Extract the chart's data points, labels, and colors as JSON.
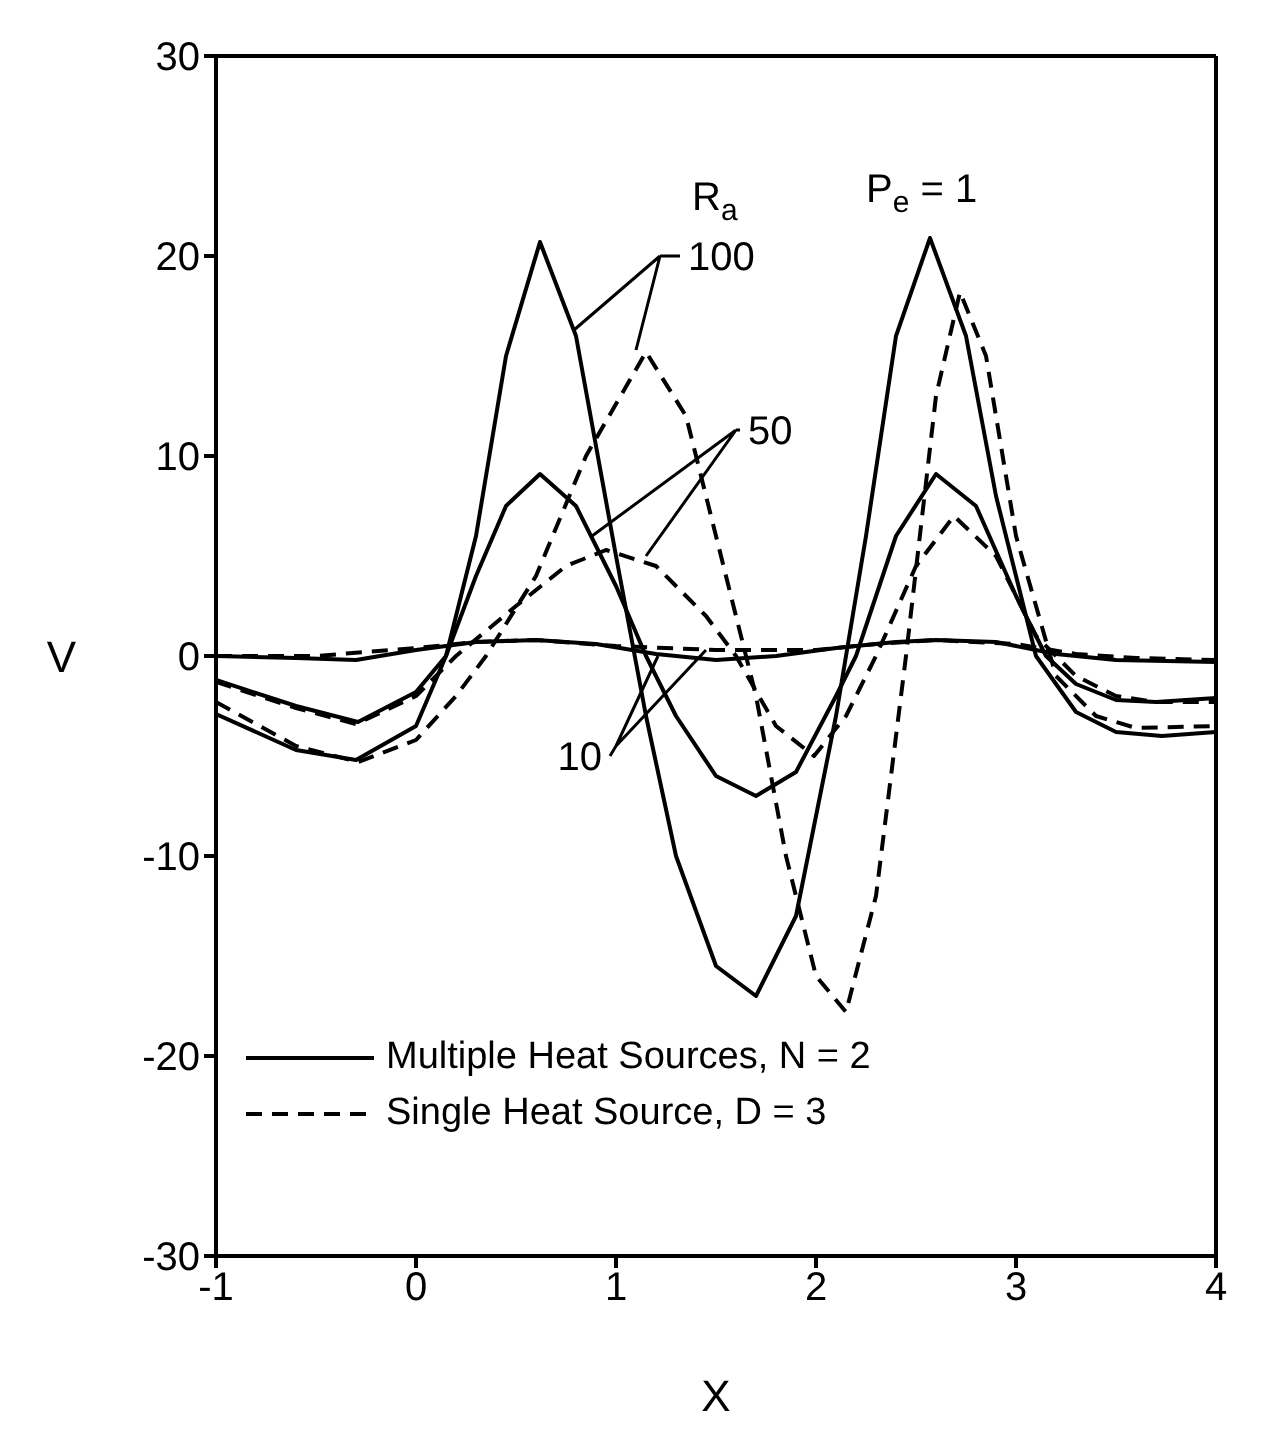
{
  "chart_data": {
    "type": "line",
    "xlabel": "X",
    "ylabel": "V",
    "xlim": [
      -1,
      4
    ],
    "ylim": [
      -30,
      30
    ],
    "xticks": [
      -1,
      0,
      1,
      2,
      3,
      4
    ],
    "yticks": [
      -30,
      -20,
      -10,
      0,
      10,
      20,
      30
    ],
    "grid": false,
    "legend": "bottom left",
    "marker": "none",
    "annotations": [
      {
        "text": "100",
        "x": 0.79,
        "y": 16.3
      },
      {
        "text": "50",
        "x": 0.88,
        "y": 6
      },
      {
        "text": "10",
        "x": 1.21,
        "y": 0
      },
      "R$_{a}$",
      "P$_{e}$ = 1"
    ],
    "series": [
      {
        "name": "Multiple Heat Sources, N = 2",
        "color": "#000000",
        "line_style": "solid",
        "x": [
          -1,
          -0.6,
          -0.3,
          0,
          0.15,
          0.3,
          0.45,
          0.62,
          0.8,
          1.0,
          1.15,
          1.3,
          1.5,
          1.7,
          1.9,
          2.1,
          2.25,
          2.4,
          2.57,
          2.75,
          2.9,
          3.1,
          3.3,
          3.5,
          3.73,
          4
        ],
        "values": [
          -2.9,
          -4.7,
          -5.2,
          -3.5,
          0,
          6,
          15,
          20.7,
          16,
          5,
          -3,
          -10,
          -15.5,
          -17,
          -13,
          -3,
          6,
          16,
          20.9,
          16,
          8,
          0,
          -2.8,
          -3.8,
          -4,
          -3.8
        ]
      },
      {
        "color": "#000000",
        "line_style": "solid",
        "x": [
          -1,
          -0.6,
          -0.29,
          0,
          0.15,
          0.3,
          0.45,
          0.62,
          0.8,
          1.0,
          1.15,
          1.3,
          1.5,
          1.7,
          1.9,
          2.1,
          2.2,
          2.4,
          2.6,
          2.8,
          3.0,
          3.15,
          3.3,
          3.5,
          3.7,
          4
        ],
        "values": [
          -1.2,
          -2.5,
          -3.3,
          -1.8,
          0,
          4,
          7.5,
          9.1,
          7.5,
          3.5,
          0,
          -3,
          -6,
          -7,
          -5.8,
          -2,
          0,
          6,
          9.1,
          7.5,
          3,
          0,
          -1.4,
          -2.2,
          -2.3,
          -2.1
        ]
      },
      {
        "color": "#000000",
        "line_style": "solid",
        "x": [
          -1,
          -0.6,
          -0.3,
          0,
          0.3,
          0.6,
          0.9,
          1.2,
          1.5,
          1.8,
          2.1,
          2.4,
          2.6,
          2.9,
          3.2,
          3.5,
          4
        ],
        "values": [
          0,
          -0.1,
          -0.2,
          0.3,
          0.7,
          0.8,
          0.6,
          0.1,
          -0.2,
          0,
          0.4,
          0.7,
          0.8,
          0.7,
          0.1,
          -0.2,
          -0.3
        ]
      },
      {
        "name": "Single Heat Source, D = 3",
        "color": "#000000",
        "line_style": "dashed",
        "x": [
          -1,
          -0.6,
          -0.29,
          0,
          0.2,
          0.35,
          0.6,
          0.85,
          1.15,
          1.35,
          1.55,
          1.7,
          1.85,
          2.0,
          2.15,
          2.3,
          2.45,
          2.6,
          2.72,
          2.85,
          3.0,
          3.2,
          3.4,
          3.6,
          4
        ],
        "values": [
          -2.3,
          -4.5,
          -5.3,
          -4.2,
          -2,
          0,
          4,
          10,
          15.2,
          12,
          4,
          -2,
          -10,
          -16,
          -17.8,
          -12,
          0,
          13,
          18.2,
          15,
          6,
          -1,
          -3,
          -3.6,
          -3.5
        ]
      },
      {
        "color": "#000000",
        "line_style": "dashed",
        "x": [
          -1,
          -0.6,
          -0.3,
          0,
          0.2,
          0.5,
          0.75,
          0.95,
          1.2,
          1.45,
          1.6,
          1.8,
          1.99,
          2.15,
          2.3,
          2.5,
          2.69,
          2.9,
          3.1,
          3.3,
          3.5,
          3.7,
          4
        ],
        "values": [
          -1.3,
          -2.6,
          -3.4,
          -2,
          0,
          2.5,
          4.5,
          5.3,
          4.5,
          2,
          0,
          -3.5,
          -5,
          -3,
          0,
          4.5,
          7,
          5,
          1,
          -1,
          -2,
          -2.3,
          -2.3
        ]
      },
      {
        "color": "#000000",
        "line_style": "dashed",
        "x": [
          -1,
          -0.5,
          0,
          0.3,
          0.6,
          1,
          1.5,
          2,
          2.3,
          2.6,
          3,
          3.3,
          3.6,
          4
        ],
        "values": [
          0,
          0,
          0.4,
          0.7,
          0.8,
          0.5,
          0.3,
          0.3,
          0.6,
          0.8,
          0.6,
          0.1,
          -0.1,
          -0.2
        ]
      }
    ]
  }
}
